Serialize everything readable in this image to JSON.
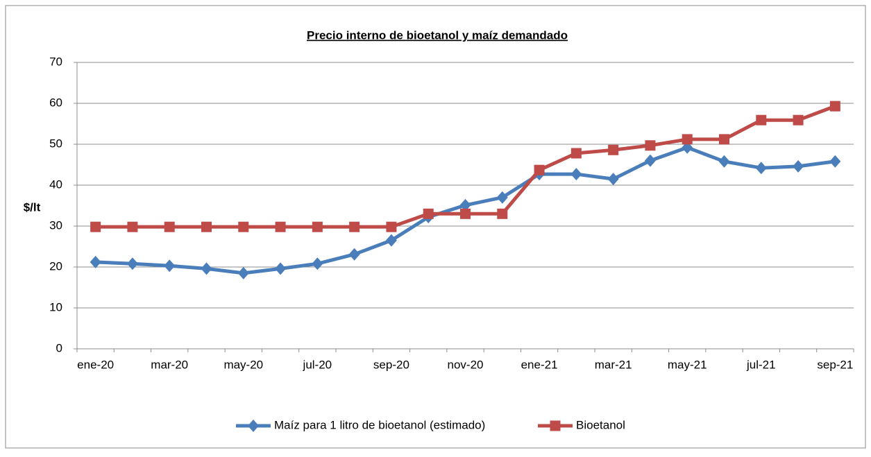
{
  "chart_data": {
    "type": "line",
    "title": "Precio interno de bioetanol y maíz demandado",
    "ylabel": "$/lt",
    "categories": [
      "ene-20",
      null,
      "mar-20",
      null,
      "may-20",
      null,
      "jul-20",
      null,
      "sep-20",
      null,
      "nov-20",
      null,
      "ene-21",
      null,
      "mar-21",
      null,
      "may-21",
      null,
      "jul-21",
      null,
      "sep-21"
    ],
    "series": [
      {
        "name": "Maíz para 1 litro de bioetanol (estimado)",
        "color": "#4a7ebb",
        "marker": "diamond",
        "values": [
          21.2,
          20.8,
          20.3,
          19.6,
          18.5,
          19.6,
          20.8,
          23.1,
          26.5,
          32.2,
          35.1,
          37.0,
          42.7,
          42.7,
          41.5,
          46.0,
          49.2,
          45.8,
          44.2,
          44.6,
          45.8
        ]
      },
      {
        "name": "Bioetanol",
        "color": "#be4b48",
        "marker": "square",
        "values": [
          29.8,
          29.8,
          29.8,
          29.8,
          29.8,
          29.8,
          29.8,
          29.8,
          29.8,
          33.0,
          33.0,
          33.0,
          43.7,
          47.8,
          48.6,
          49.7,
          51.2,
          51.2,
          55.9,
          55.9,
          59.3
        ]
      }
    ],
    "ylim": [
      0,
      70
    ],
    "yticks": [
      0,
      10,
      20,
      30,
      40,
      50,
      60,
      70
    ],
    "grid": true,
    "legend": "bottom"
  }
}
